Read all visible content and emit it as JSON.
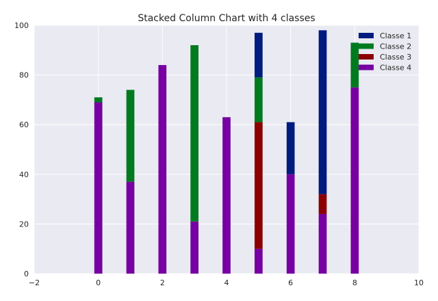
{
  "chart_data": {
    "type": "bar",
    "stacked": true,
    "title": "Stacked Column Chart with 4 classes",
    "xlabel": "",
    "ylabel": "",
    "xlim": [
      -2,
      10
    ],
    "ylim": [
      0,
      100
    ],
    "x_ticks": [
      -2,
      0,
      2,
      4,
      6,
      8,
      10
    ],
    "y_ticks": [
      0,
      20,
      40,
      60,
      80,
      100
    ],
    "grid": true,
    "legend_position": "top-right",
    "x": [
      0,
      1,
      2,
      3,
      4,
      5,
      6,
      7,
      8
    ],
    "series": [
      {
        "name": "Classe 4",
        "color": "#7600a1",
        "values": [
          69,
          37,
          84,
          21,
          63,
          10,
          40,
          24,
          75
        ]
      },
      {
        "name": "Classe 3",
        "color": "#8b0000",
        "values": [
          0,
          0,
          0,
          0,
          0,
          51,
          0,
          8,
          0
        ]
      },
      {
        "name": "Classe 2",
        "color": "#007a1f",
        "values": [
          2,
          37,
          0,
          71,
          0,
          18,
          0,
          0,
          18
        ]
      },
      {
        "name": "Classe 1",
        "color": "#001c7f",
        "values": [
          0,
          0,
          0,
          0,
          0,
          18,
          21,
          66,
          0
        ]
      }
    ],
    "legend_order": [
      "Classe 1",
      "Classe 2",
      "Classe 3",
      "Classe 4"
    ]
  }
}
